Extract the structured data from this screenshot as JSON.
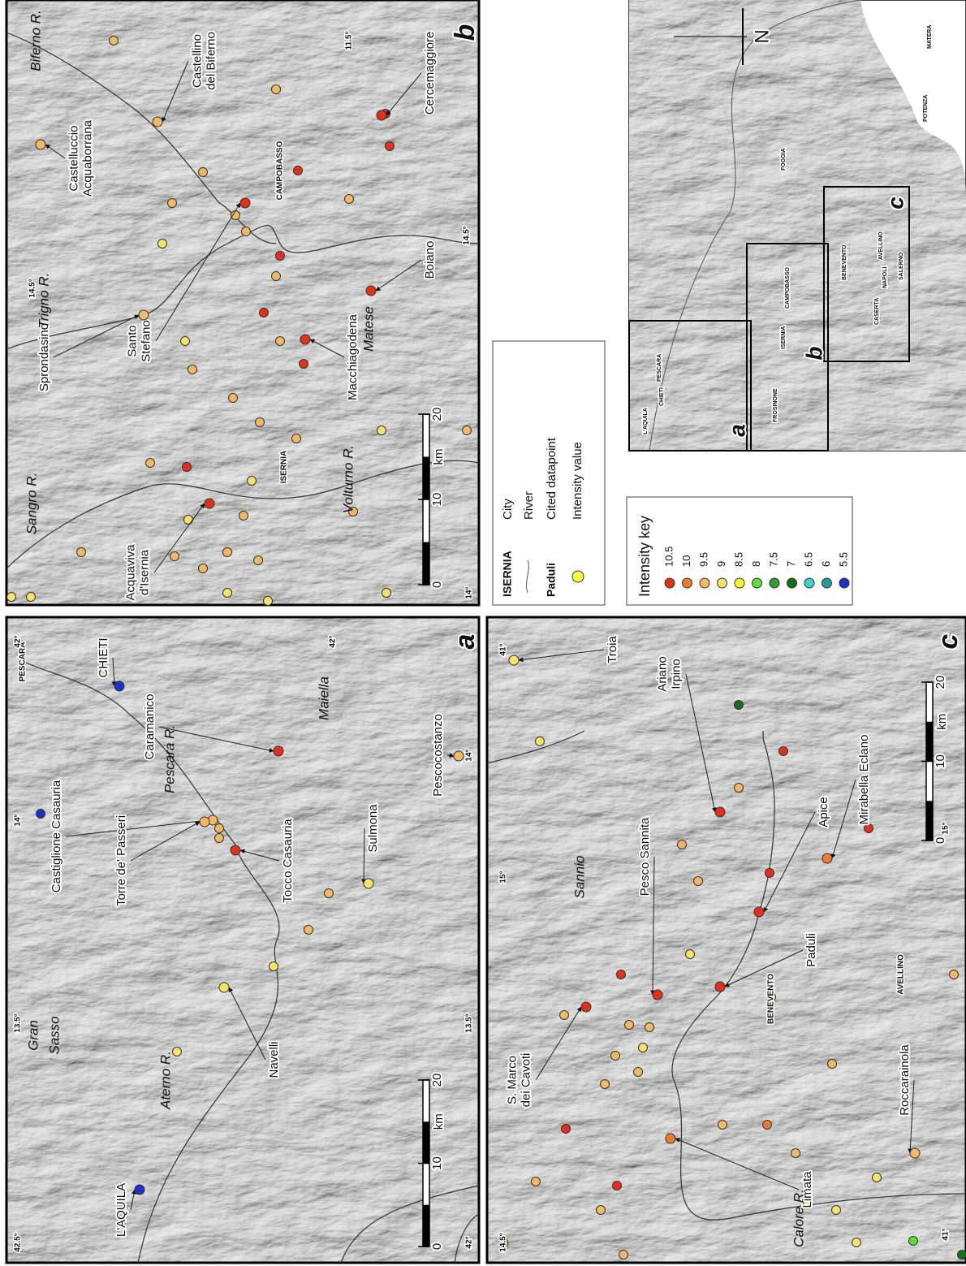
{
  "intensity_key": {
    "title": "Intensity key",
    "items": [
      {
        "value": 10.5,
        "color": "#e0301e"
      },
      {
        "value": 10,
        "color": "#f07a30"
      },
      {
        "value": 9.5,
        "color": "#f3b866"
      },
      {
        "value": 9,
        "color": "#f7e36c"
      },
      {
        "value": 8.5,
        "color": "#ffff33"
      },
      {
        "value": 8,
        "color": "#5fdc3a"
      },
      {
        "value": 7.5,
        "color": "#2e9e32"
      },
      {
        "value": 7,
        "color": "#16701a"
      },
      {
        "value": 6.5,
        "color": "#46d0d0"
      },
      {
        "value": 6,
        "color": "#1f9d9d"
      },
      {
        "value": 5.5,
        "color": "#1f2fc8"
      }
    ]
  },
  "symbol_legend": {
    "city_sample": "ISERNIA",
    "city": "City",
    "river": "River",
    "cited_sample": "Paduli",
    "cited": "Cited datapoint",
    "intensity": "Intensity value"
  },
  "panels": [
    {
      "letter": "a",
      "places": [
        {
          "lines": [
            "L'AQUILA"
          ],
          "intensity": 5.5
        },
        {
          "lines": [
            "CHIETI"
          ],
          "intensity": 5.5
        },
        {
          "lines": [
            "Castiglione Casauria"
          ],
          "intensity": 9.5
        },
        {
          "lines": [
            "Torre de' Passeri"
          ],
          "intensity": 9.5
        },
        {
          "lines": [
            "Tocco Casauria"
          ],
          "intensity": 10.5
        },
        {
          "lines": [
            "Caramanico"
          ],
          "intensity": 10.5
        },
        {
          "lines": [
            "Navelli"
          ],
          "intensity": 9
        },
        {
          "lines": [
            "Sulmona"
          ],
          "intensity": 9
        },
        {
          "lines": [
            "Pescocostanzo"
          ],
          "intensity": 9.5
        }
      ],
      "cities": [
        "PESCARA"
      ],
      "features": [
        "Gran",
        "Sasso",
        "Maiella",
        "Pescara R.",
        "Aterno R."
      ],
      "coords": [
        "42.5°",
        "13.5°",
        "14°",
        "42°",
        "42°",
        "13.5°",
        "14°",
        "42°"
      ],
      "scale": {
        "ticks": [
          0,
          10,
          20
        ],
        "unit": "km"
      },
      "dots": [
        9,
        9.5,
        9.5,
        9,
        9.5,
        9.5,
        5.5
      ]
    },
    {
      "letter": "b",
      "places": [
        {
          "lines": [
            "Acquaviva",
            "d'Isernia"
          ],
          "intensity": 10.5
        },
        {
          "lines": [
            "Santo",
            "Stefano"
          ],
          "intensity": 10.5
        },
        {
          "lines": [
            "Sprondasino"
          ],
          "intensity": 9.5
        },
        {
          "lines": [
            "Castelluccio",
            "Acquaborrana"
          ],
          "intensity": 9.5
        },
        {
          "lines": [
            "Castellino",
            "del Biferno"
          ],
          "intensity": 9.5
        },
        {
          "lines": [
            "Macchiagodena"
          ],
          "intensity": 10.5
        },
        {
          "lines": [
            "Boiano"
          ],
          "intensity": 10.5
        },
        {
          "lines": [
            "Cercemaggiore"
          ],
          "intensity": 10.5
        }
      ],
      "cities": [
        "ISERNIA",
        "CAMPOBASSO"
      ],
      "features": [
        "Matese",
        "Sangro R.",
        "Trigno R.",
        "Biferno R.",
        "Volturno R."
      ],
      "coords": [
        "14°",
        "14.5°",
        "14.5°",
        "11.5°"
      ],
      "scale": {
        "ticks": [
          0,
          10,
          20
        ],
        "unit": "km"
      },
      "dots": [
        10.5,
        9,
        9.5,
        9.5,
        9,
        9.5,
        9.5,
        9.5,
        9,
        9.5,
        9.5,
        10.5,
        10.5,
        9.5,
        9.5,
        9.5,
        9,
        10.5,
        9.5,
        9.5,
        10.5,
        10.5,
        9.5,
        9,
        9.5,
        9.5,
        9,
        9,
        9.5,
        9.5,
        9.5,
        9.5,
        9.5,
        9.5,
        9,
        9.5,
        10.5,
        9,
        9,
        9.5
      ]
    },
    {
      "letter": "c",
      "places": [
        {
          "lines": [
            "Troia"
          ],
          "intensity": 9
        },
        {
          "lines": [
            "Ariano",
            "Irpino"
          ],
          "intensity": 10.5
        },
        {
          "lines": [
            "Pesco Sannita"
          ],
          "intensity": 10.5
        },
        {
          "lines": [
            "S. Marco",
            "dei Cavoti"
          ],
          "intensity": 10.5
        },
        {
          "lines": [
            "Paduli"
          ],
          "intensity": 10.5
        },
        {
          "lines": [
            "Apice"
          ],
          "intensity": 10.5
        },
        {
          "lines": [
            "Mirabella Eclano"
          ],
          "intensity": 10
        },
        {
          "lines": [
            "Roccarainola"
          ],
          "intensity": 9.5
        },
        {
          "lines": [
            "Limata"
          ],
          "intensity": 10
        }
      ],
      "cities": [
        "BENEVENTO",
        "AVELLINO"
      ],
      "features": [
        "Sannio",
        "Calore R."
      ],
      "coords": [
        "14.5°",
        "15°",
        "41°",
        "15°",
        "41°"
      ],
      "scale": {
        "ticks": [
          0,
          10,
          20
        ],
        "unit": "km"
      },
      "dots": [
        9.5,
        9.5,
        10.5,
        9.5,
        9.5,
        9.5,
        9.5,
        9.5,
        9.5,
        9.5,
        10.5,
        9,
        9.5,
        9,
        9.5,
        9.5,
        10.5,
        9.5,
        10.5,
        7,
        9,
        9,
        10,
        9.5,
        9.5,
        9,
        9,
        8,
        9.5,
        7,
        10.5,
        9,
        9,
        9.5,
        10.5
      ]
    }
  ],
  "locator": {
    "labels": [
      "L'AQUILA",
      "CHIETI",
      "PESCARA",
      "FROSINONE",
      "ISERNIA",
      "CAMPOBASSO",
      "BENEVENTO",
      "CASERTA",
      "NAPOLI",
      "AVELLINO",
      "SALERNO",
      "FOGGIA",
      "POTENZA",
      "MATERA"
    ],
    "boxes": [
      "a",
      "b",
      "c"
    ],
    "north": "N"
  }
}
